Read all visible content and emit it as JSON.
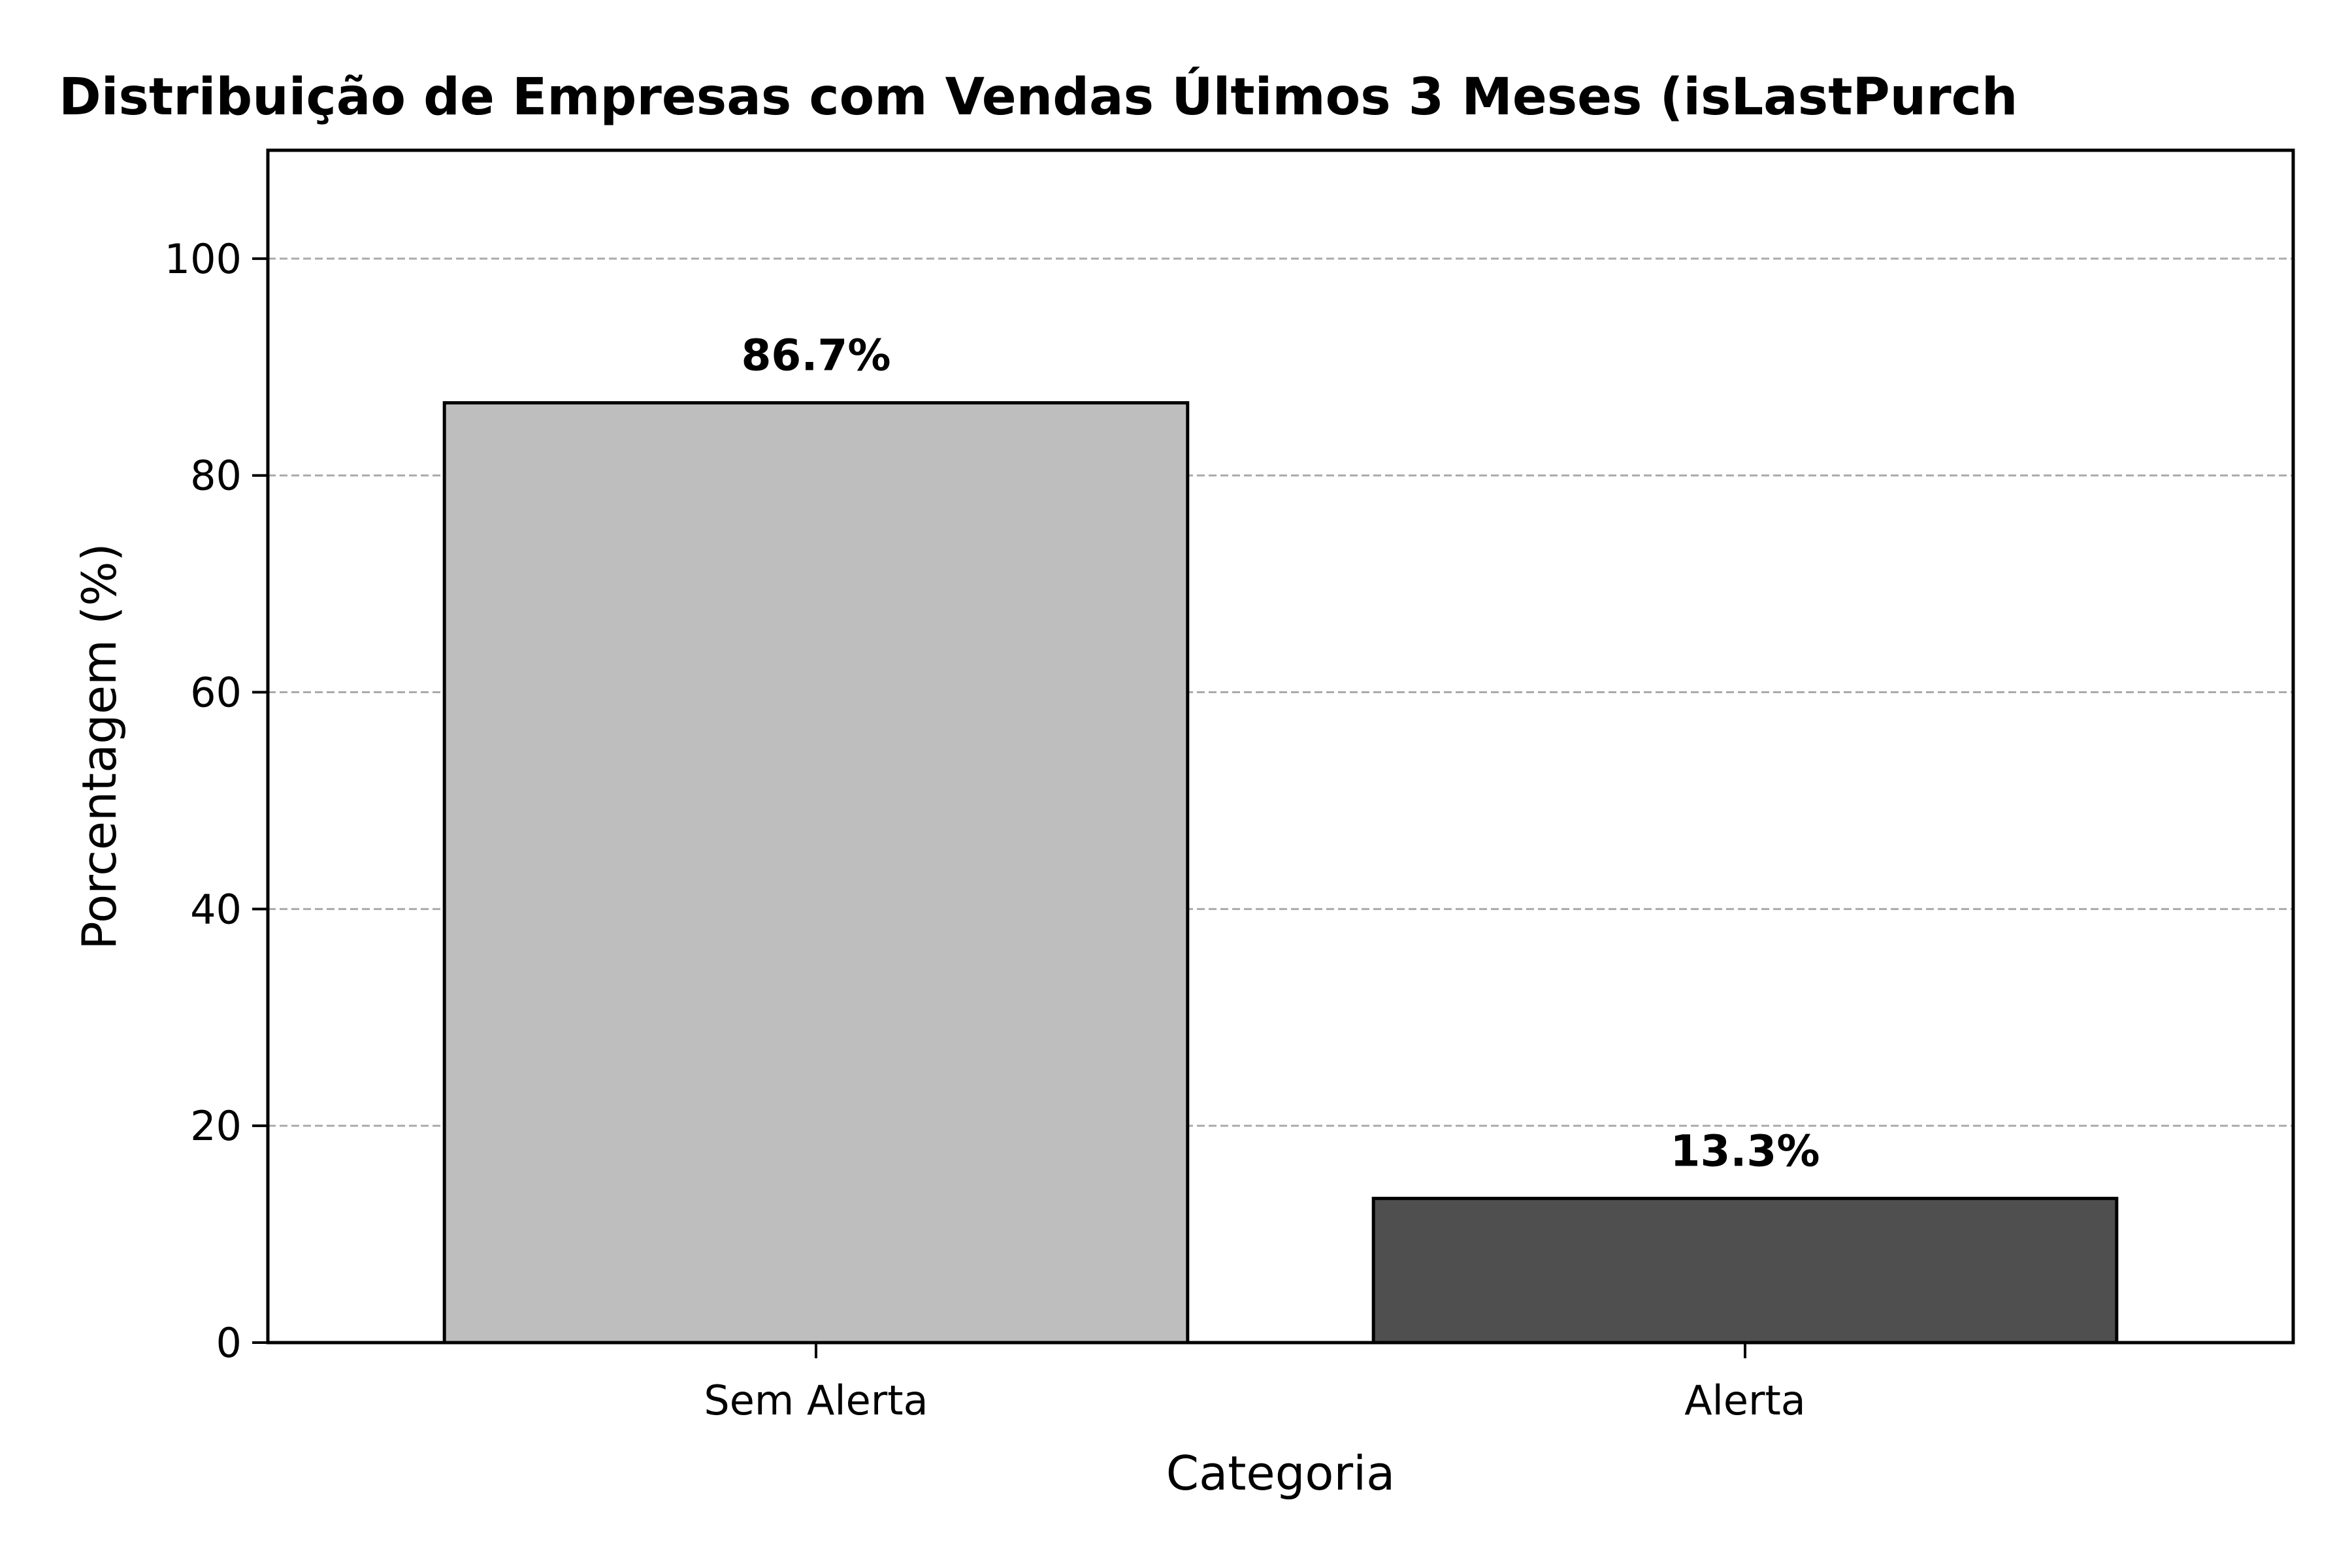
{
  "chart_data": {
    "type": "bar",
    "title": "Distribuição de Empresas com Vendas Últimos 3 Meses (isLastPurch",
    "xlabel": "Categoria",
    "ylabel": "Porcentagem (%)",
    "categories": [
      "Sem Alerta",
      "Alerta"
    ],
    "values": [
      86.7,
      13.3
    ],
    "data_labels": [
      "86.7%",
      "13.3%"
    ],
    "bar_colors": [
      "#bebebe",
      "#4f4f4f"
    ],
    "edge_color": "#000000",
    "ylim": [
      0,
      110
    ],
    "yticks": [
      0,
      20,
      40,
      60,
      80,
      100
    ],
    "ytick_labels": [
      "0",
      "20",
      "40",
      "60",
      "80",
      "100"
    ],
    "grid": "y-dashed",
    "grid_color": "#aaaaaa"
  }
}
